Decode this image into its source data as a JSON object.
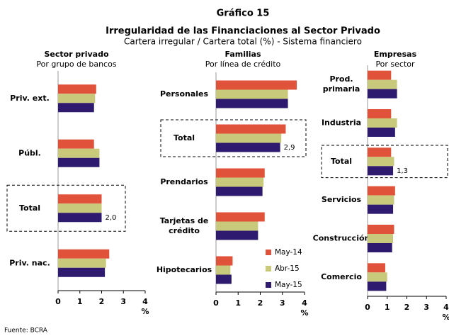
{
  "title": "Gráfico 15",
  "heading": "Irregularidad de las Financiaciones al Sector Privado",
  "subtitle": "Cartera irregular / Cartera total (%) - Sistema financiero",
  "source": "Fuente: BCRA",
  "chart_data": [
    {
      "type": "hbar",
      "title": "Sector privado",
      "subtitle": "Por grupo de bancos",
      "x_label": "%",
      "categories": [
        "Priv. ext.",
        "Públ.",
        "Total",
        "Priv. nac."
      ],
      "highlight": 2,
      "series": [
        {
          "color": "#e0533a",
          "values": [
            1.75,
            1.65,
            2.0,
            2.35
          ]
        },
        {
          "color": "#c9c97c",
          "values": [
            1.7,
            1.9,
            2.0,
            2.2
          ]
        },
        {
          "color": "#2e1a6e",
          "values": [
            1.65,
            1.9,
            2.0,
            2.15
          ],
          "value_labels": [
            null,
            null,
            "2,0",
            null
          ]
        }
      ],
      "xlim": [
        0,
        4
      ],
      "xticks": [
        0,
        1,
        2,
        3,
        4
      ]
    },
    {
      "type": "hbar",
      "title": "Familias",
      "subtitle": "Por línea de crédito",
      "x_label": "%",
      "categories": [
        "Personales",
        "Total",
        "Prendarios",
        "Tarjetas de crédito",
        "Hipotecarios"
      ],
      "highlight": 1,
      "series": [
        {
          "name": "May-14",
          "color": "#e0533a",
          "values": [
            3.65,
            3.15,
            2.2,
            2.2,
            0.75
          ]
        },
        {
          "name": "Abr-15",
          "color": "#c9c97c",
          "values": [
            3.25,
            2.95,
            2.15,
            1.9,
            0.65
          ]
        },
        {
          "name": "May-15",
          "color": "#2e1a6e",
          "values": [
            3.25,
            2.9,
            2.1,
            1.9,
            0.7
          ],
          "value_labels": [
            null,
            "2,9",
            null,
            null,
            null
          ]
        }
      ],
      "legend": "lower right",
      "xlim": [
        0,
        4
      ],
      "xticks": [
        0,
        1,
        2,
        3,
        4
      ]
    },
    {
      "type": "hbar",
      "title": "Empresas",
      "subtitle": "Por sector",
      "x_label": "%",
      "categories": [
        "Prod. primaria",
        "Industria",
        "Total",
        "Servicios",
        "Construcción",
        "Comercio"
      ],
      "highlight": 2,
      "series": [
        {
          "color": "#e0533a",
          "values": [
            1.2,
            1.2,
            1.2,
            1.4,
            1.35,
            0.9
          ]
        },
        {
          "color": "#c9c97c",
          "values": [
            1.5,
            1.5,
            1.35,
            1.35,
            1.3,
            1.0
          ]
        },
        {
          "color": "#2e1a6e",
          "values": [
            1.5,
            1.4,
            1.3,
            1.3,
            1.25,
            0.95
          ],
          "value_labels": [
            null,
            null,
            "1,3",
            null,
            null,
            null
          ]
        }
      ],
      "xlim": [
        0,
        4
      ],
      "xticks": [
        0,
        1,
        2,
        3,
        4
      ]
    }
  ]
}
